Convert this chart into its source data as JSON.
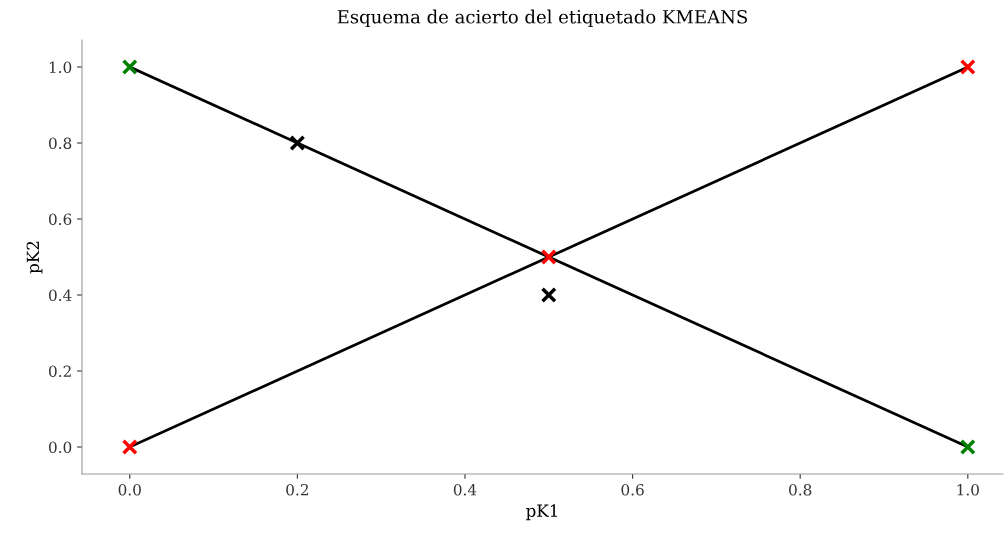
{
  "chart_data": {
    "type": "line",
    "title": "Esquema de acierto del etiquetado KMEANS",
    "xlabel": "pK1",
    "ylabel": "pK2",
    "xlim": [
      -0.057,
      1.042
    ],
    "ylim": [
      -0.071,
      1.071
    ],
    "xticks": [
      {
        "value": 0,
        "label": "0.0"
      },
      0.2,
      0.4,
      0.6,
      0.8,
      {
        "value": 1,
        "label": "1.0"
      }
    ],
    "yticks": [
      {
        "value": 0,
        "label": "0.0"
      },
      0.2,
      0.4,
      0.6,
      0.8,
      {
        "value": 1,
        "label": "1.0"
      }
    ],
    "grid": false,
    "legend": false,
    "series": [
      {
        "color": "#000000",
        "x": [
          0,
          1
        ],
        "values": [
          1,
          0
        ],
        "marker": "none",
        "line_style": "solid"
      },
      {
        "color": "#000000",
        "x": [
          0,
          0.5,
          1
        ],
        "values": [
          0,
          0.5,
          1
        ],
        "marker": "none",
        "line_style": "solid"
      },
      {
        "type": "scatter",
        "color": "#008000",
        "x": [
          0,
          1
        ],
        "values": [
          1,
          0
        ],
        "marker": "cross"
      },
      {
        "type": "scatter",
        "color": "#ff0000",
        "x": [
          0,
          0.5,
          1
        ],
        "values": [
          0,
          0.5,
          1
        ],
        "marker": "cross"
      },
      {
        "type": "scatter",
        "color": "#000000",
        "x": [
          0.2,
          0.5
        ],
        "values": [
          0.8,
          0.4
        ],
        "marker": "cross"
      }
    ]
  }
}
